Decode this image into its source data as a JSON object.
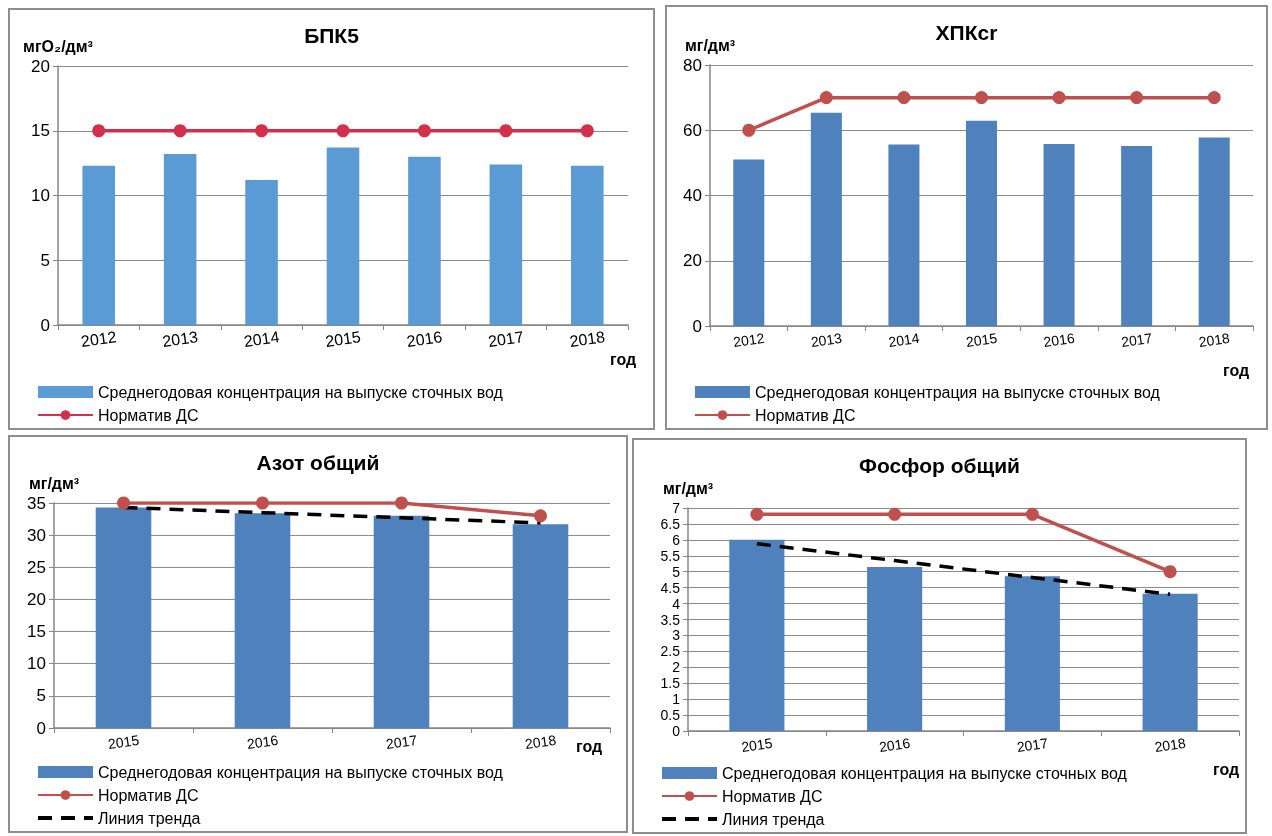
{
  "chart_data": [
    {
      "type": "bar",
      "title": "БПК5",
      "ylabel": "мгO₂/дм³",
      "xlabel": "год",
      "categories": [
        "2012",
        "2013",
        "2014",
        "2015",
        "2016",
        "2017",
        "2018"
      ],
      "ylim": [
        0,
        20
      ],
      "yticks": [
        0,
        5,
        10,
        15,
        20
      ],
      "grid": "y",
      "legend": "bottom left",
      "series": [
        {
          "name": "Среднегодовая концентрация на выпуске сточных вод",
          "color": "#5b9bd5",
          "values": [
            12.3,
            13.2,
            11.2,
            13.7,
            13.0,
            12.4,
            12.3
          ]
        },
        {
          "type": "line",
          "name": "Норматив ДС",
          "color": "#d52f4e",
          "marker": "circle",
          "line_style": "solid",
          "values": [
            15,
            15,
            15,
            15,
            15,
            15,
            15
          ]
        }
      ]
    },
    {
      "type": "bar",
      "title": "ХПКcr",
      "ylabel": "мг/дм³",
      "xlabel": "год",
      "categories": [
        "2012",
        "2013",
        "2014",
        "2015",
        "2016",
        "2017",
        "2018"
      ],
      "ylim": [
        0,
        80
      ],
      "yticks": [
        0,
        20,
        40,
        60,
        80
      ],
      "grid": "y",
      "legend": "bottom left",
      "series": [
        {
          "name": "Среднегодовая концентрация на выпуске сточных вод",
          "color": "#4f81bd",
          "values": [
            51,
            65.4,
            55.6,
            62.9,
            55.8,
            55.2,
            57.8
          ]
        },
        {
          "type": "line",
          "name": "Норматив ДС",
          "color": "#c0504d",
          "marker": "circle",
          "line_style": "solid",
          "values": [
            60,
            70,
            70,
            70,
            70,
            70,
            70
          ]
        }
      ]
    },
    {
      "type": "bar",
      "title": "Азот общий",
      "ylabel": "мг/дм³",
      "xlabel": "год",
      "categories": [
        "2015",
        "2016",
        "2017",
        "2018"
      ],
      "ylim": [
        0,
        35
      ],
      "yticks": [
        0,
        5,
        10,
        15,
        20,
        25,
        30,
        35
      ],
      "grid": "y",
      "legend": "bottom left",
      "series": [
        {
          "name": "Среднегодовая концентрация на выпуске сточных вод",
          "color": "#4f81bd",
          "values": [
            34.3,
            33.4,
            33.0,
            31.7
          ]
        },
        {
          "type": "line",
          "name": "Норматив ДС",
          "color": "#c0504d",
          "marker": "circle",
          "line_style": "solid",
          "values": [
            35,
            35,
            35,
            33
          ]
        },
        {
          "type": "line",
          "name": "Линия тренда",
          "color": "#000000",
          "marker": "none",
          "line_style": "dashed",
          "values": [
            34.3,
            33.5,
            32.7,
            31.9
          ]
        }
      ]
    },
    {
      "type": "bar",
      "title": "Фосфор общий",
      "ylabel": "мг/дм³",
      "xlabel": "год",
      "categories": [
        "2015",
        "2016",
        "2017",
        "2018"
      ],
      "ylim": [
        0,
        7
      ],
      "yticks": [
        0,
        0.5,
        1,
        1.5,
        2,
        2.5,
        3,
        3.5,
        4,
        4.5,
        5,
        5.5,
        6,
        6.5,
        7
      ],
      "grid": "y",
      "legend": "bottom left",
      "series": [
        {
          "name": "Среднегодовая концентрация на выпуске сточных вод",
          "color": "#4f81bd",
          "values": [
            6.0,
            5.15,
            4.86,
            4.31
          ]
        },
        {
          "type": "line",
          "name": "Норматив ДС",
          "color": "#c0504d",
          "marker": "circle",
          "line_style": "solid",
          "values": [
            6.8,
            6.8,
            6.8,
            5.0
          ]
        },
        {
          "type": "line",
          "name": "Линия тренда",
          "color": "#000000",
          "marker": "none",
          "line_style": "dashed",
          "values": [
            5.88,
            5.35,
            4.82,
            4.29
          ]
        }
      ]
    }
  ]
}
